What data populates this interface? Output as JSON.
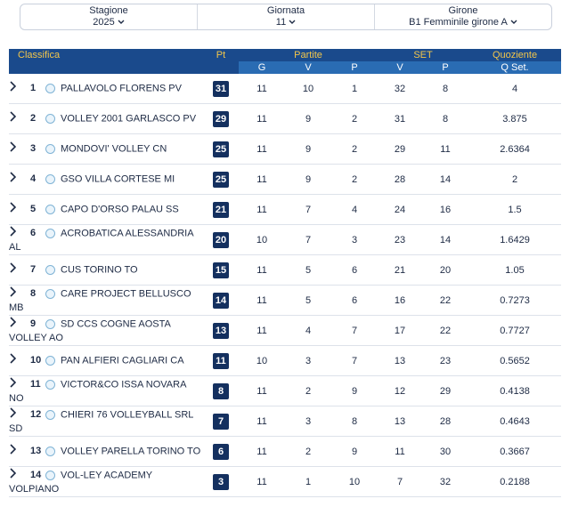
{
  "filters": [
    {
      "label": "Stagione",
      "value": 2025
    },
    {
      "label": "Giornata",
      "value": 11
    },
    {
      "label": "Girone",
      "value": "B1 Femminile girone A"
    }
  ],
  "table": {
    "header": {
      "classifica": "Classifica",
      "pt": "Pt",
      "partite": "Partite",
      "set": "SET",
      "quoziente": "Quoziente",
      "columns": [
        "G",
        "V",
        "P",
        "V",
        "P",
        "Q Set."
      ]
    },
    "rows": [
      [
        1,
        "PALLAVOLO FLORENS PV",
        31,
        11,
        10,
        1,
        32,
        8,
        4
      ],
      [
        2,
        "VOLLEY 2001 GARLASCO PV",
        29,
        11,
        9,
        2,
        31,
        8,
        3.875
      ],
      [
        3,
        "MONDOVI' VOLLEY CN",
        25,
        11,
        9,
        2,
        29,
        11,
        2.6364
      ],
      [
        4,
        "GSO VILLA CORTESE MI",
        25,
        11,
        9,
        2,
        28,
        14,
        2
      ],
      [
        5,
        "CAPO D'ORSO PALAU SS",
        21,
        11,
        7,
        4,
        24,
        16,
        1.5
      ],
      [
        6,
        "ACROBATICA ALESSANDRIA AL",
        20,
        10,
        7,
        3,
        23,
        14,
        1.6429
      ],
      [
        7,
        "CUS TORINO TO",
        15,
        11,
        5,
        6,
        21,
        20,
        1.05
      ],
      [
        8,
        "CARE PROJECT BELLUSCO MB",
        14,
        11,
        5,
        6,
        16,
        22,
        0.7273
      ],
      [
        9,
        "SD CCS COGNE AOSTA VOLLEY AO",
        13,
        11,
        4,
        7,
        17,
        22,
        0.7727
      ],
      [
        10,
        "PAN ALFIERI CAGLIARI CA",
        11,
        10,
        3,
        7,
        13,
        23,
        0.5652
      ],
      [
        11,
        "VICTOR&CO ISSA NOVARA NO",
        8,
        11,
        2,
        9,
        12,
        29,
        0.4138
      ],
      [
        12,
        "CHIERI 76 VOLLEYBALL SRL SD",
        7,
        11,
        3,
        8,
        13,
        28,
        0.4643
      ],
      [
        13,
        "VOLLEY PARELLA TORINO TO",
        6,
        11,
        2,
        9,
        11,
        30,
        0.3667
      ],
      [
        14,
        "VOL-LEY ACADEMY VOLPIANO",
        3,
        11,
        1,
        10,
        7,
        32,
        0.2188
      ]
    ]
  }
}
